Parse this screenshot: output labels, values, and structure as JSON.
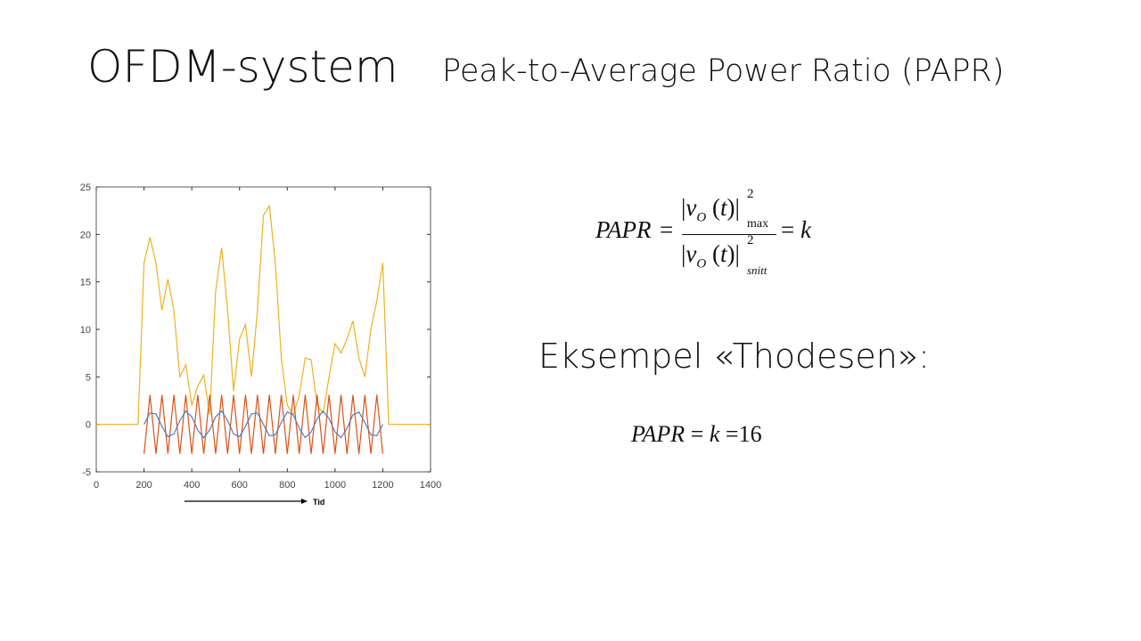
{
  "title": "OFDM-system",
  "subtitle": "Peak-to-Average Power Ratio (PAPR)",
  "chart_data": {
    "type": "line",
    "x": [
      0,
      25,
      50,
      75,
      100,
      125,
      150,
      175,
      200,
      225,
      250,
      275,
      300,
      325,
      350,
      375,
      400,
      425,
      450,
      475,
      500,
      525,
      550,
      575,
      600,
      625,
      650,
      675,
      700,
      725,
      750,
      775,
      800,
      825,
      850,
      875,
      900,
      925,
      950,
      975,
      1000,
      1025,
      1050,
      1075,
      1100,
      1125,
      1150,
      1175,
      1200,
      1225,
      1250,
      1275,
      1300,
      1325,
      1350,
      1375,
      1400
    ],
    "series": [
      {
        "color": "#edb120",
        "values": [
          0,
          0,
          0,
          0,
          0,
          0,
          0,
          0,
          17,
          19.7,
          17,
          12,
          15.3,
          12,
          5,
          6.3,
          2,
          4,
          5.2,
          1,
          14,
          18.6,
          12,
          3.5,
          9,
          10.5,
          5,
          12,
          22,
          23,
          17,
          7,
          2,
          1,
          3,
          7,
          6.8,
          2,
          1.2,
          5,
          8.5,
          7.5,
          9,
          10.9,
          7,
          5,
          10,
          13,
          17,
          0,
          0,
          0,
          0,
          0,
          0,
          0,
          0
        ]
      },
      {
        "color": "#d95319",
        "values": [
          null,
          null,
          null,
          null,
          null,
          null,
          null,
          null,
          -3.1,
          3.1,
          -3.1,
          3.1,
          -3.1,
          3.1,
          -3.1,
          3.1,
          -3.1,
          3.1,
          -3.1,
          3.1,
          -3.1,
          3.1,
          -3.1,
          3.1,
          -3.1,
          3.1,
          -3.1,
          3.1,
          -3.1,
          3.1,
          -3.1,
          3.1,
          -3.1,
          3.1,
          -3.1,
          3.1,
          -3.1,
          3.1,
          -3.1,
          3.1,
          -3.1,
          3.1,
          -3.1,
          3.1,
          -3.1,
          3.1,
          -3.1,
          3.1,
          -3.1,
          null,
          null,
          null,
          null,
          null,
          null,
          null,
          null
        ]
      },
      {
        "color": "#4f7fbf",
        "values": [
          null,
          null,
          null,
          null,
          null,
          null,
          null,
          null,
          0,
          1.2,
          1.1,
          -0.2,
          -1.3,
          -1.0,
          0.4,
          1.4,
          0.8,
          -0.6,
          -1.4,
          -0.6,
          0.8,
          1.4,
          0.4,
          -1.0,
          -1.3,
          -0.2,
          1.1,
          1.2,
          0,
          -1.2,
          -1.1,
          0.2,
          1.3,
          1.0,
          -0.4,
          -1.4,
          -0.8,
          0.6,
          1.4,
          0.6,
          -0.8,
          -1.4,
          -0.4,
          1.0,
          1.3,
          0.2,
          -1.1,
          -1.2,
          0,
          null,
          null,
          null,
          null,
          null,
          null,
          null,
          null
        ]
      }
    ],
    "xlim": [
      0,
      1400
    ],
    "xticks": [
      0,
      200,
      400,
      600,
      800,
      1000,
      1200,
      1400
    ],
    "ylim": [
      -5,
      25
    ],
    "yticks": [
      -5,
      0,
      5,
      10,
      15,
      20,
      25
    ],
    "x_label": "Tid"
  },
  "formula": {
    "lhs": "PAPR",
    "eq": "=",
    "bar": "|",
    "v": "v",
    "sub": "O",
    "lp": "(",
    "t": "t",
    "rp": ")",
    "sup": "2",
    "max": "max",
    "avg": "snitt",
    "rhs": "k"
  },
  "example_heading": "Eksempel «Thodesen»:",
  "example": {
    "lhs": "PAPR",
    "eq": "=",
    "mid": "k",
    "value": "16"
  }
}
